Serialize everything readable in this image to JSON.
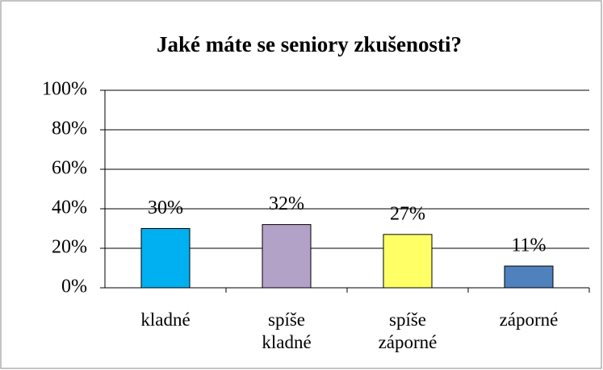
{
  "chart_data": {
    "type": "bar",
    "title": "Jaké máte se seniory zkušenosti?",
    "categories": [
      "kladné",
      "spíše kladné",
      "spíše záporné",
      "záporné"
    ],
    "values": [
      30,
      32,
      27,
      11
    ],
    "value_labels": [
      "30%",
      "32%",
      "27%",
      "11%"
    ],
    "colors": [
      "#00b0f0",
      "#b3a2c7",
      "#ffff66",
      "#4f81bd"
    ],
    "ylim": [
      0,
      100
    ],
    "yticks": [
      {
        "value": 0,
        "label": "0%"
      },
      {
        "value": 20,
        "label": "20%"
      },
      {
        "value": 40,
        "label": "40%"
      },
      {
        "value": 60,
        "label": "60%"
      },
      {
        "value": 80,
        "label": "80%"
      },
      {
        "value": 100,
        "label": "100%"
      }
    ],
    "grid": true
  }
}
